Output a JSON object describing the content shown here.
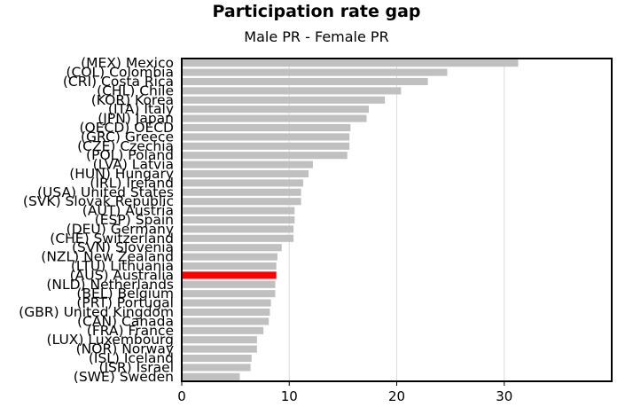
{
  "chart_data": {
    "type": "bar",
    "orientation": "horizontal",
    "title": "Participation rate gap",
    "subtitle": "Male PR - Female PR",
    "xlabel": "",
    "ylabel": "",
    "xlim": [
      0,
      40
    ],
    "xticks": [
      0,
      10,
      20,
      30
    ],
    "grid": "vertical",
    "categories": [
      "(MEX) Mexico",
      "(COL) Colombia",
      "(CRI) Costa Rica",
      "(CHL) Chile",
      "(KOR) Korea",
      "(ITA) Italy",
      "(JPN) Japan",
      "(OECD) OECD",
      "(GRC) Greece",
      "(CZE) Czechia",
      "(POL) Poland",
      "(LVA) Latvia",
      "(HUN) Hungary",
      "(IRL) Ireland",
      "(USA) United States",
      "(SVK) Slovak Republic",
      "(AUT) Austria",
      "(ESP) Spain",
      "(DEU) Germany",
      "(CHE) Switzerland",
      "(SVN) Slovenia",
      "(NZL) New Zealand",
      "(LTU) Lithuania",
      "(AUS) Australia",
      "(NLD) Netherlands",
      "(BEL) Belgium",
      "(PRT) Portugal",
      "(GBR) United Kingdom",
      "(CAN) Canada",
      "(FRA) France",
      "(LUX) Luxembourg",
      "(NOR) Norway",
      "(ISL) Iceland",
      "(ISR) Israel",
      "(SWE) Sweden"
    ],
    "values": [
      31.3,
      24.7,
      22.9,
      20.4,
      18.9,
      17.4,
      17.2,
      15.7,
      15.6,
      15.6,
      15.4,
      12.2,
      11.8,
      11.3,
      11.1,
      11.1,
      10.5,
      10.5,
      10.4,
      10.4,
      9.3,
      8.9,
      8.8,
      8.8,
      8.7,
      8.7,
      8.3,
      8.2,
      8.1,
      7.6,
      7.0,
      7.0,
      6.5,
      6.4,
      5.4
    ],
    "highlight": "(AUS) Australia",
    "colors": {
      "bar": "#c0c0c0",
      "highlight": "#ff0000",
      "grid": "#dcdcdc",
      "frame": "#000000"
    }
  }
}
